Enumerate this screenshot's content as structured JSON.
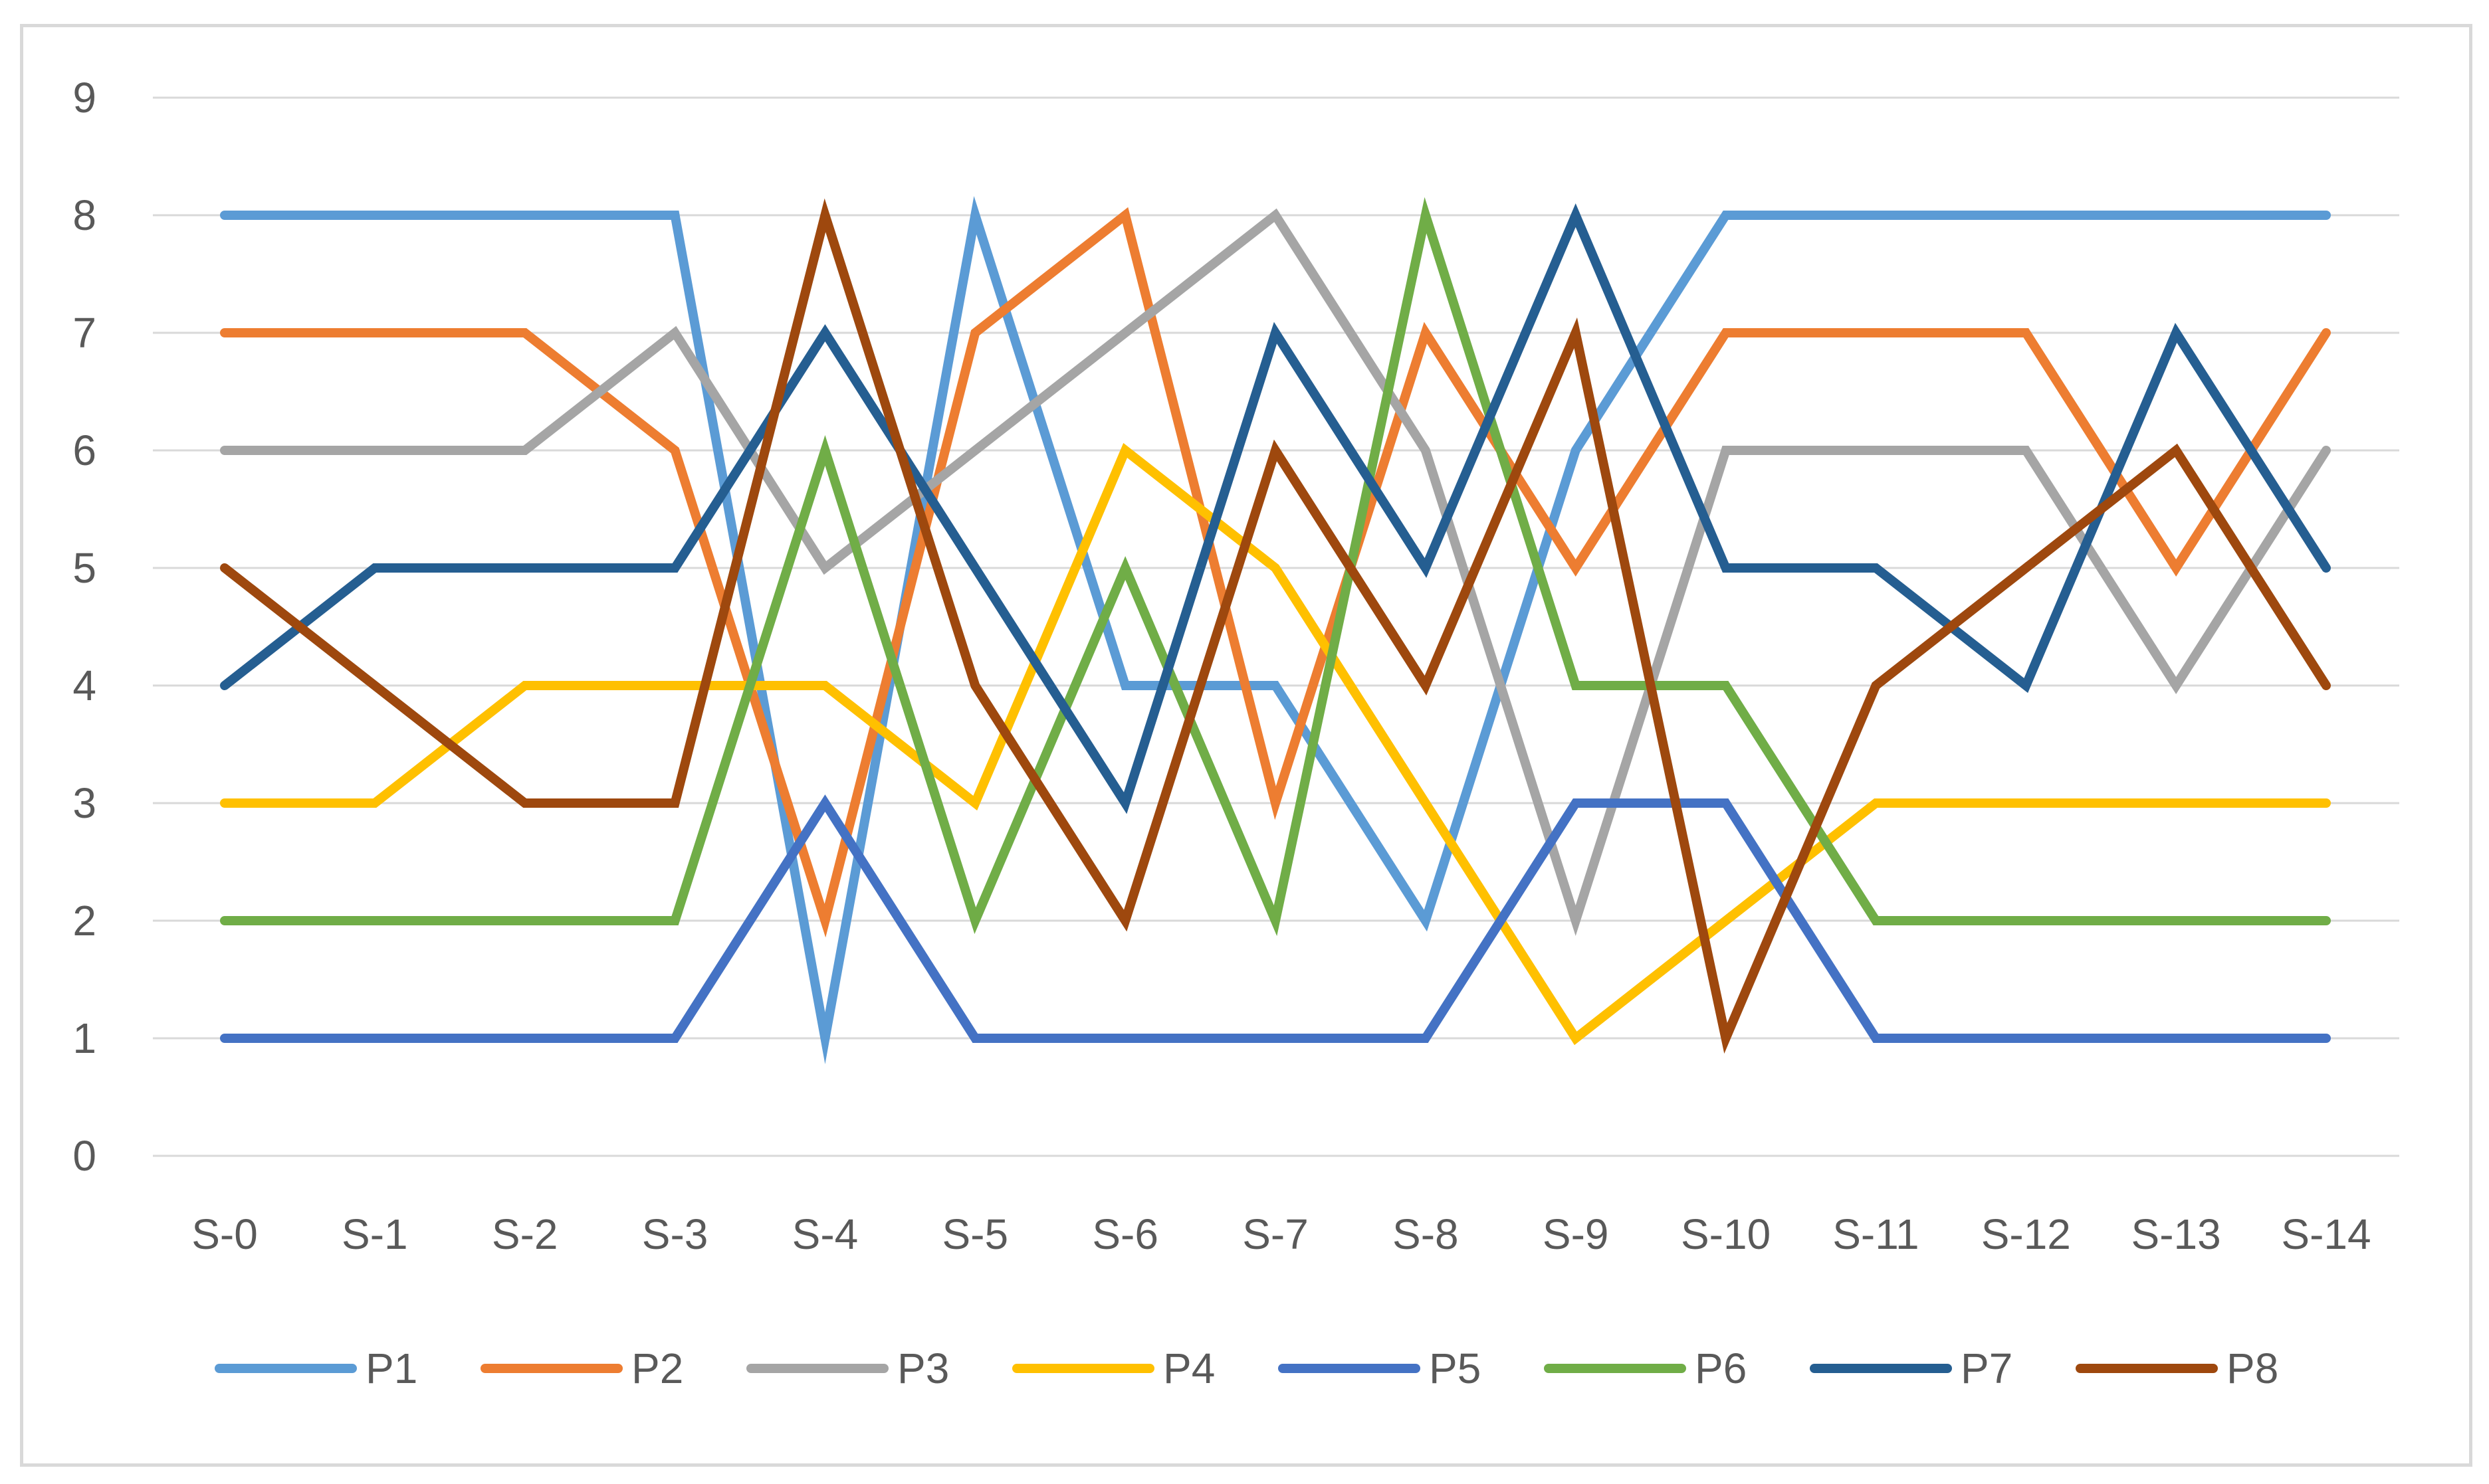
{
  "chart_data": {
    "type": "line",
    "categories": [
      "S-0",
      "S-1",
      "S-2",
      "S-3",
      "S-4",
      "S-5",
      "S-6",
      "S-7",
      "S-8",
      "S-9",
      "S-10",
      "S-11",
      "S-12",
      "S-13",
      "S-14"
    ],
    "ylim": [
      0,
      9
    ],
    "yticks": [
      "0",
      "1",
      "2",
      "3",
      "4",
      "5",
      "6",
      "7",
      "8",
      "9"
    ],
    "grid": true,
    "legend_position": "bottom",
    "series": [
      {
        "name": "P1",
        "color": "#5b9bd5",
        "values": [
          8,
          8,
          8,
          8,
          1,
          8,
          4,
          4,
          2,
          6,
          8,
          8,
          8,
          8,
          8
        ]
      },
      {
        "name": "P2",
        "color": "#ed7d31",
        "values": [
          7,
          7,
          7,
          6,
          2,
          7,
          8,
          3,
          7,
          5,
          7,
          7,
          7,
          5,
          7
        ]
      },
      {
        "name": "P3",
        "color": "#a5a5a5",
        "values": [
          6,
          6,
          6,
          7,
          5,
          6,
          7,
          8,
          6,
          2,
          6,
          6,
          6,
          4,
          6
        ]
      },
      {
        "name": "P4",
        "color": "#ffc000",
        "values": [
          3,
          3,
          4,
          4,
          4,
          3,
          6,
          5,
          3,
          1,
          2,
          3,
          3,
          3,
          3
        ]
      },
      {
        "name": "P5",
        "color": "#4472c4",
        "values": [
          1,
          1,
          1,
          1,
          3,
          1,
          1,
          1,
          1,
          3,
          3,
          1,
          1,
          1,
          1
        ]
      },
      {
        "name": "P6",
        "color": "#70ad47",
        "values": [
          2,
          2,
          2,
          2,
          6,
          2,
          5,
          2,
          8,
          4,
          4,
          2,
          2,
          2,
          2
        ]
      },
      {
        "name": "P7",
        "color": "#255e91",
        "values": [
          4,
          5,
          5,
          5,
          7,
          5,
          3,
          7,
          5,
          8,
          5,
          5,
          4,
          7,
          5
        ]
      },
      {
        "name": "P8",
        "color": "#9e480e",
        "values": [
          5,
          4,
          3,
          3,
          8,
          4,
          2,
          6,
          4,
          7,
          1,
          4,
          5,
          6,
          4
        ]
      }
    ]
  }
}
